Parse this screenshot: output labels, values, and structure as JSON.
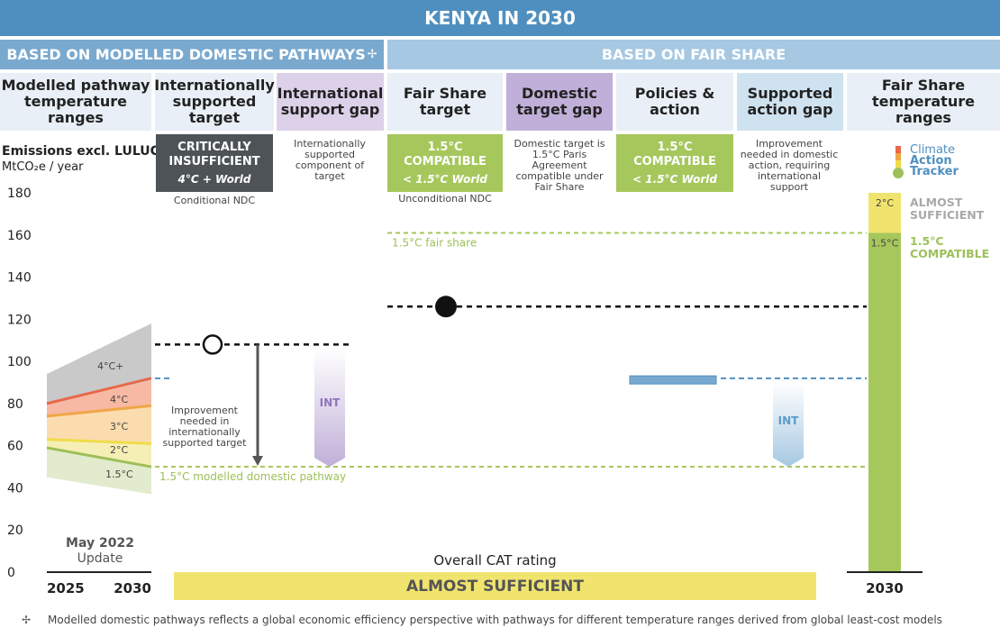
{
  "title": "KENYA IN 2030",
  "sections": {
    "modelled": "BASED ON MODELLED DOMESTIC PATHWAYS",
    "modelled_mark": "✢",
    "fair_share": "BASED ON FAIR SHARE"
  },
  "columns": {
    "modelled_ranges": "Modelled pathway temperature ranges",
    "intl_target": "Internationally supported target",
    "intl_gap": "International support gap",
    "fs_target": "Fair Share target",
    "dom_gap": "Domestic target gap",
    "policies": "Policies & action",
    "supp_gap": "Supported action gap",
    "fs_ranges": "Fair Share temperature ranges"
  },
  "yaxis": {
    "label_bold": "Emissions excl. LULUCF",
    "label_unit": "MtCO₂e / year"
  },
  "badges": {
    "intl_target": {
      "main": "CRITICALLY INSUFFICIENT",
      "sub": "4°C + World",
      "color": "#4d5356"
    },
    "fs_target": {
      "main": "1.5°C COMPATIBLE",
      "sub": "< 1.5°C World",
      "color": "#a6c75c"
    },
    "policies": {
      "main": "1.5°C COMPATIBLE",
      "sub": "< 1.5°C World",
      "color": "#a6c75c"
    }
  },
  "notes": {
    "intl_gap": "Internationally supported component of target",
    "dom_gap": "Domestic target is 1.5°C Paris Agreement compatible under Fair Share",
    "supp_gap": "Improvement needed in domestic action, requiring international support",
    "conditional": "Conditional NDC",
    "unconditional": "Unconditional NDC",
    "improvement": "Improvement needed in internationally supported target",
    "fair_share_line": "1.5°C fair share",
    "modelled_line": "1.5°C modelled domestic pathway",
    "int_label": "INT"
  },
  "logo": {
    "line1": "Climate",
    "line2": "Action",
    "line3": "Tracker"
  },
  "update": {
    "line1": "May 2022",
    "line2": "Update"
  },
  "overall": {
    "label": "Overall CAT rating",
    "rating": "ALMOST SUFFICIENT"
  },
  "footnote": {
    "mark": "✢",
    "text": "Modelled domestic pathways reflects a global economic efficiency perspective with pathways for different temperature ranges derived from global least-cost models"
  },
  "chart_data": {
    "type": "bar",
    "ylim": [
      0,
      180
    ],
    "yticks": [
      0,
      20,
      40,
      60,
      80,
      100,
      120,
      140,
      160,
      180
    ],
    "x": [
      "2025",
      "2030"
    ],
    "modelled_ranges": [
      {
        "label": "4°C+",
        "lower": [
          80,
          91
        ],
        "upper": [
          94,
          118
        ],
        "color": "#c9c9c9"
      },
      {
        "label": "4°C",
        "lower": [
          74,
          79
        ],
        "upper": [
          80,
          91
        ],
        "color": "#f7b9a3"
      },
      {
        "label": "3°C",
        "lower": [
          63,
          61
        ],
        "upper": [
          74,
          79
        ],
        "color": "#fbdcae"
      },
      {
        "label": "2°C",
        "lower": [
          58,
          50
        ],
        "upper": [
          63,
          61
        ],
        "color": "#f6efb5"
      },
      {
        "label": "1.5°C",
        "lower": [
          45,
          37
        ],
        "upper": [
          58,
          50
        ],
        "color": "#e2ebcd"
      }
    ],
    "boundary_lines": [
      {
        "values": [
          80,
          92
        ],
        "color": "#e8684a"
      },
      {
        "values": [
          74,
          79
        ],
        "color": "#f0a647"
      },
      {
        "values": [
          63,
          61
        ],
        "color": "#f0dc4a"
      },
      {
        "values": [
          59,
          50
        ],
        "color": "#9dc05a"
      }
    ],
    "historical_level_2030": 92,
    "conditional_ndc": 108,
    "unconditional_ndc": 126,
    "policies_action": 91,
    "fair_share_line": 161,
    "modelled_pathway_line": 50,
    "fair_share_ranges": [
      {
        "label": "1.5°C",
        "from": 0,
        "to": 161,
        "color": "#a6c75c"
      },
      {
        "label": "2°C",
        "from": 161,
        "to": 180,
        "color": "#f0e46e"
      }
    ],
    "fair_share_rating_labels": [
      {
        "label": "ALMOST SUFFICIENT",
        "color": "#a9a9a9"
      },
      {
        "label": "1.5°C COMPATIBLE",
        "color": "#9dc05a"
      }
    ]
  }
}
